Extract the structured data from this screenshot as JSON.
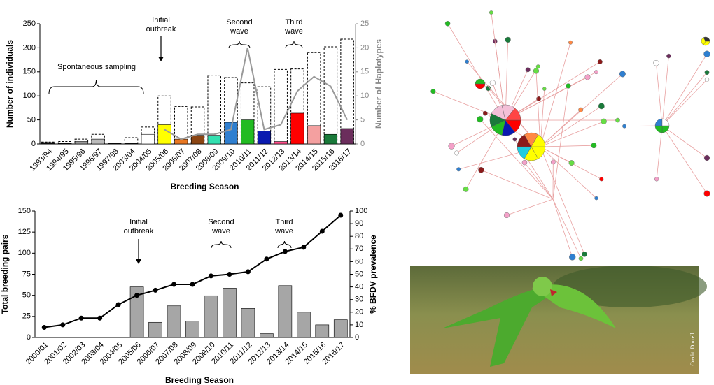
{
  "chart_data": [
    {
      "type": "bar",
      "categories": [
        "1993/94",
        "1994/95",
        "1995/96",
        "1996/97",
        "1997/98",
        "2003/04",
        "2004/05",
        "2005/06",
        "2006/07",
        "2007/08",
        "2008/09",
        "2009/10",
        "2010/11",
        "2011/12",
        "2012/13",
        "2013/14",
        "2014/15",
        "2015/16",
        "2016/17"
      ],
      "series": [
        {
          "type": "bar",
          "style": "dashed",
          "color": "#000000",
          "values": [
            4,
            5,
            10,
            20,
            2,
            13,
            35,
            100,
            78,
            77,
            143,
            138,
            127,
            119,
            155,
            156,
            190,
            202,
            218
          ]
        },
        {
          "type": "bar",
          "colors": [
            "#111111",
            "#222222",
            "#999999",
            "#bbbbbb",
            "#333333",
            "#555555",
            "#ffffff",
            "#ffff00",
            "#e87722",
            "#8b4513",
            "#33e0b0",
            "#2f7fd0",
            "#22bb22",
            "#0a1ab0",
            "#ff4d8a",
            "#ff0000",
            "#f4a0a0",
            "#1a7a3a",
            "#6b2d5c"
          ],
          "values": [
            3,
            1,
            5,
            10,
            1,
            1,
            20,
            40,
            10,
            18,
            18,
            45,
            50,
            27,
            5,
            64,
            38,
            20,
            32
          ]
        },
        {
          "type": "line",
          "axis": "y2",
          "color": "#999999",
          "values": [
            null,
            null,
            null,
            null,
            null,
            null,
            null,
            3,
            1,
            2,
            2,
            3,
            20,
            3,
            4,
            11,
            14,
            12,
            5
          ]
        }
      ],
      "ylim": [
        0,
        250
      ],
      "yticks": [
        0,
        50,
        100,
        150,
        200,
        250
      ],
      "y2lim": [
        0,
        25
      ],
      "y2ticks": [
        0,
        5,
        10,
        15,
        20,
        25
      ],
      "ylabel": "Number of individuals",
      "y2label": "Number of Haplotypes",
      "xlabel": "Breeding Season",
      "annotations": [
        "Spontaneous sampling",
        "Initial\noutbreak",
        "Second\nwave",
        "Third\nwave"
      ]
    },
    {
      "type": "bar",
      "categories": [
        "2000/01",
        "2001/02",
        "2002/03",
        "2003/04",
        "2004/05",
        "2005/06",
        "2006/07",
        "2007/08",
        "2008/09",
        "2009/10",
        "2010/11",
        "2011/12",
        "2012/13",
        "2013/14",
        "2014/15",
        "2015/16",
        "2016/17"
      ],
      "series": [
        {
          "type": "bar",
          "axis": "y2",
          "color": "#a6a6a6",
          "values": [
            null,
            null,
            null,
            null,
            null,
            40,
            12,
            25,
            13,
            33,
            39,
            23,
            3,
            41,
            20,
            10,
            14
          ]
        },
        {
          "type": "line",
          "markers": true,
          "color": "#000000",
          "values": [
            12,
            15,
            23,
            23,
            39,
            50,
            56,
            63,
            63,
            73,
            75,
            78,
            93,
            102,
            107,
            126,
            145
          ]
        }
      ],
      "ylim": [
        0,
        150
      ],
      "yticks": [
        0,
        25,
        50,
        75,
        100,
        125,
        150
      ],
      "y2lim": [
        0,
        100
      ],
      "y2ticks": [
        0,
        10,
        20,
        30,
        40,
        50,
        60,
        70,
        80,
        90,
        100
      ],
      "ylabel": "Total breeding pairs",
      "y2label": "% BFDV prevalence",
      "xlabel": "Breeding Season",
      "annotations": [
        "Initial\noutbreak",
        "Second\nwave",
        "Third\nwave"
      ]
    }
  ],
  "photo": {
    "credit": "Credit: Durrell"
  }
}
